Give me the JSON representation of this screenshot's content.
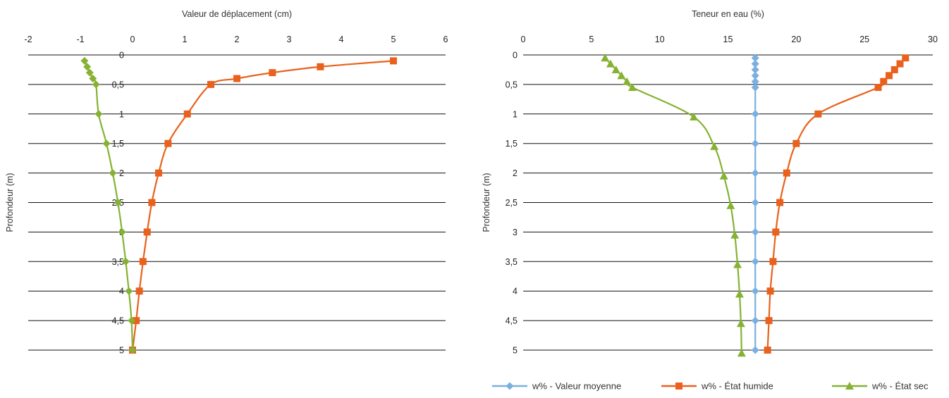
{
  "chart_data": [
    {
      "type": "line",
      "xlabel": "Valeur de déplacement (cm)",
      "ylabel": "Profondeur (m)",
      "xlim": [
        -2,
        6
      ],
      "ylim": [
        0,
        5
      ],
      "x_ticks": [
        "-2",
        "-1",
        "0",
        "1",
        "2",
        "3",
        "4",
        "5",
        "6"
      ],
      "y_ticks": [
        "0",
        "0,5",
        "1",
        "1,5",
        "2",
        "2,5",
        "3",
        "3,5",
        "4",
        "4,5",
        "5"
      ],
      "x_axis_position": "top",
      "y_axis_inverted": true,
      "grid": "horizontal",
      "legend": null,
      "series": [
        {
          "color": "#E9611C",
          "marker": "square",
          "x": [
            5.0,
            3.6,
            2.68,
            2.0,
            1.5,
            1.05,
            0.68,
            0.5,
            0.37,
            0.28,
            0.2,
            0.13,
            0.07,
            0.0
          ],
          "y": [
            0.1,
            0.2,
            0.3,
            0.4,
            0.5,
            1.0,
            1.5,
            2.0,
            2.5,
            3.0,
            3.5,
            4.0,
            4.5,
            5.0
          ]
        },
        {
          "color": "#86B233",
          "marker": "diamond",
          "x": [
            -0.92,
            -0.87,
            -0.82,
            -0.76,
            -0.7,
            -0.65,
            -0.5,
            -0.38,
            -0.28,
            -0.2,
            -0.13,
            -0.07,
            -0.02,
            0.0
          ],
          "y": [
            0.1,
            0.2,
            0.3,
            0.4,
            0.5,
            1.0,
            1.5,
            2.0,
            2.5,
            3.0,
            3.5,
            4.0,
            4.5,
            5.0
          ]
        }
      ]
    },
    {
      "type": "line",
      "xlabel": "Teneur en eau (%)",
      "ylabel": "Profondeur (m)",
      "xlim": [
        0,
        30
      ],
      "ylim": [
        0,
        5
      ],
      "x_ticks": [
        "0",
        "5",
        "10",
        "15",
        "20",
        "25",
        "30"
      ],
      "y_ticks": [
        "0",
        "0,5",
        "1",
        "1,5",
        "2",
        "2,5",
        "3",
        "3,5",
        "4",
        "4,5",
        "5"
      ],
      "x_axis_position": "top",
      "y_axis_inverted": true,
      "grid": "horizontal",
      "legend": "bottom",
      "series": [
        {
          "name": "w% - Valeur moyenne",
          "color": "#7BAFE0",
          "marker": "diamond",
          "x": [
            17,
            17,
            17,
            17,
            17,
            17,
            17,
            17,
            17,
            17,
            17,
            17,
            17,
            17,
            17
          ],
          "y": [
            0.05,
            0.15,
            0.25,
            0.35,
            0.45,
            0.55,
            1.0,
            1.5,
            2.0,
            2.5,
            3.0,
            3.5,
            4.0,
            4.5,
            5.0
          ]
        },
        {
          "name": "w% - État humide",
          "color": "#E9611C",
          "marker": "square",
          "x": [
            28.0,
            27.6,
            27.2,
            26.8,
            26.4,
            26.0,
            21.6,
            20.0,
            19.3,
            18.8,
            18.5,
            18.3,
            18.1,
            18.0,
            17.9
          ],
          "y": [
            0.05,
            0.15,
            0.25,
            0.35,
            0.45,
            0.55,
            1.0,
            1.5,
            2.0,
            2.5,
            3.0,
            3.5,
            4.0,
            4.5,
            5.0
          ]
        },
        {
          "name": "w% - État sec",
          "color": "#86B233",
          "marker": "triangle",
          "x": [
            6.0,
            6.4,
            6.8,
            7.2,
            7.6,
            8.0,
            12.5,
            14.0,
            14.7,
            15.2,
            15.5,
            15.7,
            15.85,
            15.95,
            16.0
          ],
          "y": [
            0.05,
            0.15,
            0.25,
            0.35,
            0.45,
            0.55,
            1.05,
            1.55,
            2.05,
            2.55,
            3.05,
            3.55,
            4.05,
            4.55,
            5.05
          ]
        }
      ]
    }
  ]
}
